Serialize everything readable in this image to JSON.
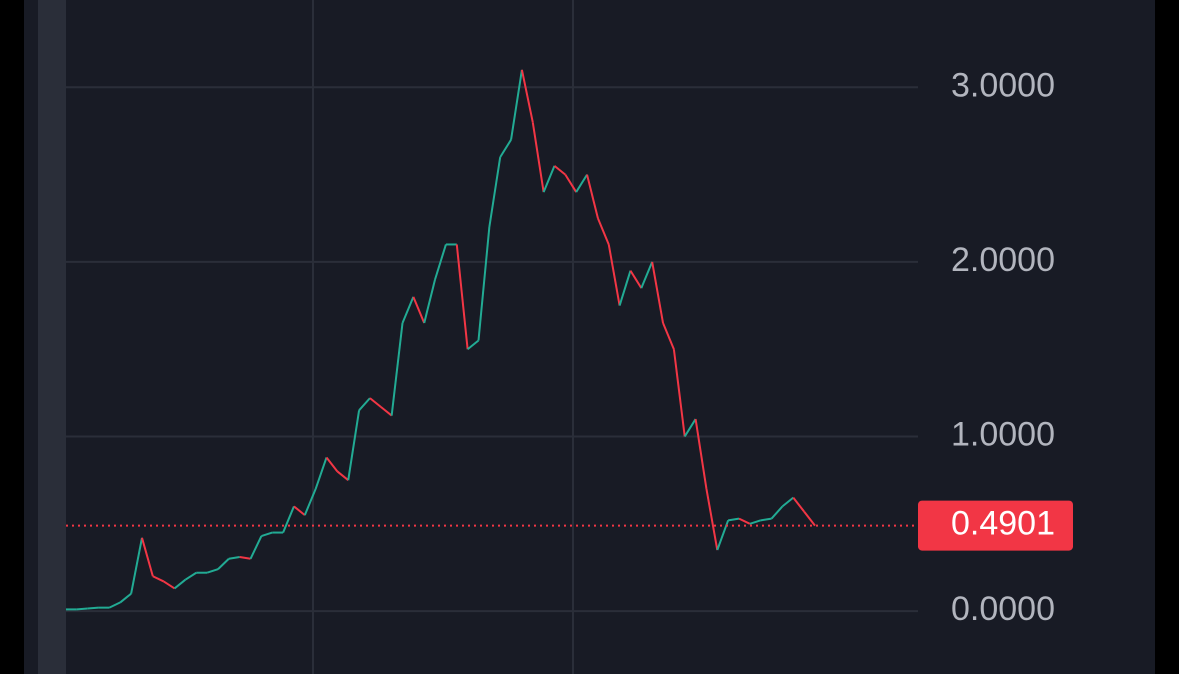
{
  "chart_data": {
    "type": "line",
    "values": [
      0.01,
      0.01,
      0.015,
      0.02,
      0.02,
      0.05,
      0.1,
      0.42,
      0.2,
      0.17,
      0.13,
      0.18,
      0.22,
      0.22,
      0.24,
      0.3,
      0.31,
      0.3,
      0.43,
      0.45,
      0.45,
      0.6,
      0.55,
      0.7,
      0.88,
      0.8,
      0.75,
      1.15,
      1.22,
      1.17,
      1.12,
      1.65,
      1.8,
      1.65,
      1.9,
      2.1,
      2.1,
      1.5,
      1.55,
      2.2,
      2.6,
      2.7,
      3.1,
      2.8,
      2.4,
      2.55,
      2.5,
      2.4,
      2.5,
      2.25,
      2.1,
      1.75,
      1.95,
      1.85,
      2.0,
      1.65,
      1.5,
      1.0,
      1.1,
      0.7,
      0.35,
      0.52,
      0.53,
      0.5,
      0.52,
      0.53,
      0.6,
      0.65,
      0.57,
      0.49
    ],
    "up_color": "#22ab94",
    "down_color": "#f23645",
    "ylim": [
      -0.36,
      3.5
    ],
    "yticks": [
      {
        "value": 0,
        "label": "0.0000"
      },
      {
        "value": 1,
        "label": "1.0000"
      },
      {
        "value": 2,
        "label": "2.0000"
      },
      {
        "value": 3,
        "label": "3.0000"
      }
    ],
    "grid": true,
    "last_price": 0.4901
  }
}
